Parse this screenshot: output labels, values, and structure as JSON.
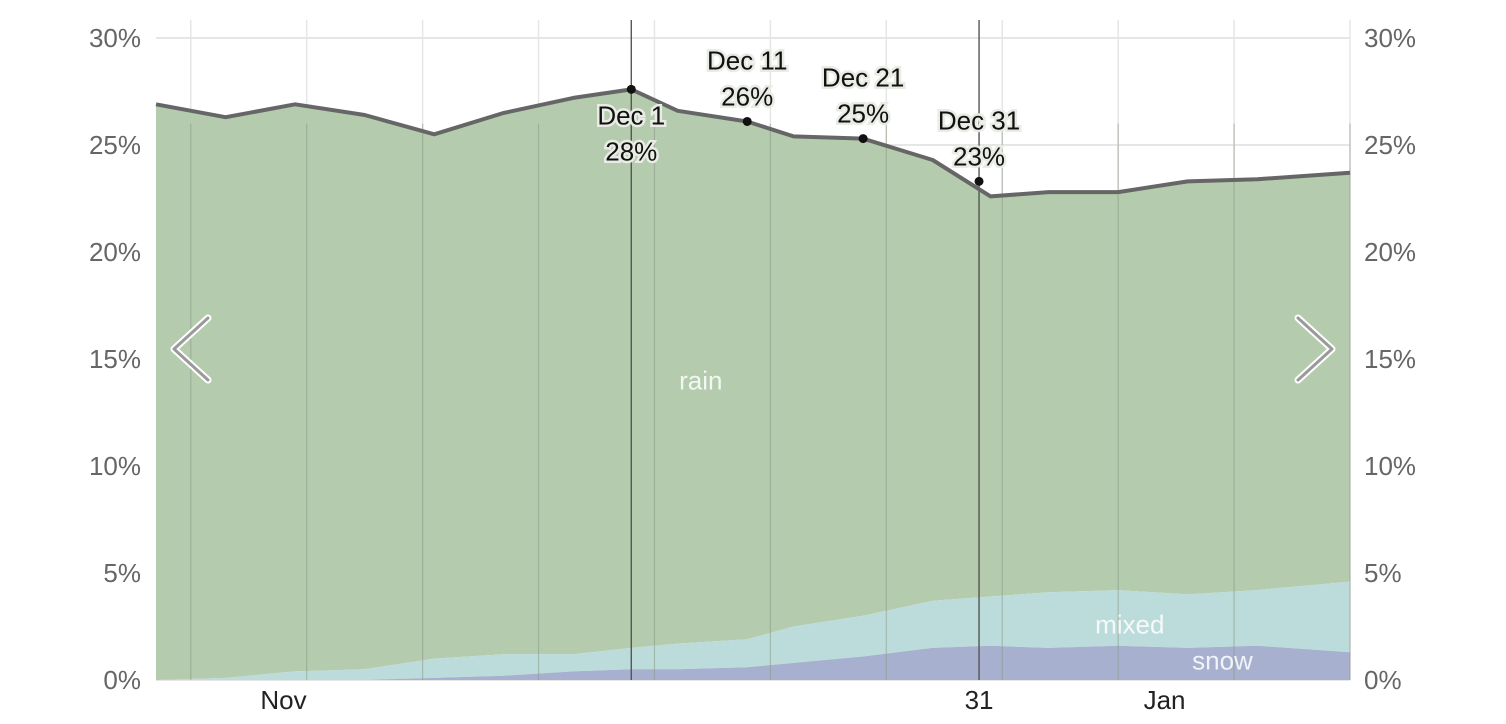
{
  "colors": {
    "rain": "#b4cbad",
    "mixed": "#bcdcdc",
    "snow": "#a7b0cf",
    "total_line": "#666666",
    "grid": "#e6e6e6",
    "week_line": "#8a9a86"
  },
  "navigation": {
    "prev_icon": "chevron-left-icon",
    "next_icon": "chevron-right-icon"
  },
  "chart_data": {
    "type": "area",
    "stacked": true,
    "title": "",
    "xlabel": "",
    "ylabel": "",
    "ylim": [
      0,
      30
    ],
    "yticks": [
      "0%",
      "5%",
      "10%",
      "15%",
      "20%",
      "25%",
      "30%"
    ],
    "y_axes": [
      "left",
      "right"
    ],
    "grid": true,
    "x_range": [
      "Oct 21",
      "Feb 1"
    ],
    "month_labels": [
      {
        "date": "Nov 1",
        "label": "Nov"
      },
      {
        "date": "Dec 31",
        "label": "31"
      },
      {
        "date": "Jan 16",
        "label": "Jan"
      }
    ],
    "area_labels": [
      {
        "series": "rain",
        "label": "rain",
        "date": "Dec 7",
        "y": 14.0
      },
      {
        "series": "mixed",
        "label": "mixed",
        "date": "Jan 13",
        "y": 2.6
      },
      {
        "series": "snow",
        "label": "snow",
        "date": "Jan 21",
        "y": 0.9
      }
    ],
    "annotations": [
      {
        "date": "Dec 1",
        "label": "Dec 1",
        "value_label": "28%",
        "value": 27.6,
        "placement": "below"
      },
      {
        "date": "Dec 11",
        "label": "Dec 11",
        "value_label": "26%",
        "value": 26.1,
        "placement": "above"
      },
      {
        "date": "Dec 21",
        "label": "Dec 21",
        "value_label": "25%",
        "value": 25.3,
        "placement": "above"
      },
      {
        "date": "Dec 31",
        "label": "Dec 31",
        "value_label": "23%",
        "value": 23.3,
        "placement": "above"
      }
    ],
    "x": [
      "Oct 21",
      "Oct 27",
      "Nov 2",
      "Nov 8",
      "Nov 14",
      "Nov 20",
      "Nov 26",
      "Dec 1",
      "Dec 5",
      "Dec 11",
      "Dec 15",
      "Dec 21",
      "Dec 27",
      "Jan 1",
      "Jan 6",
      "Jan 12",
      "Jan 18",
      "Jan 24",
      "Feb 1"
    ],
    "series": [
      {
        "name": "snow",
        "values": [
          0.0,
          0.0,
          0.0,
          0.0,
          0.1,
          0.2,
          0.4,
          0.5,
          0.5,
          0.6,
          0.8,
          1.1,
          1.5,
          1.6,
          1.5,
          1.6,
          1.5,
          1.6,
          1.3
        ]
      },
      {
        "name": "mixed",
        "values": [
          0.0,
          0.1,
          0.4,
          0.5,
          0.9,
          1.0,
          0.8,
          1.0,
          1.2,
          1.3,
          1.7,
          1.9,
          2.2,
          2.3,
          2.6,
          2.6,
          2.5,
          2.6,
          3.3
        ]
      },
      {
        "name": "rain",
        "values": [
          26.9,
          26.2,
          26.5,
          25.9,
          24.5,
          25.3,
          26.0,
          26.1,
          24.9,
          24.2,
          22.9,
          22.3,
          20.6,
          18.7,
          18.7,
          18.6,
          19.3,
          19.2,
          19.1
        ]
      },
      {
        "name": "total",
        "values": [
          26.9,
          26.3,
          26.9,
          26.4,
          25.5,
          26.5,
          27.2,
          27.6,
          26.6,
          26.1,
          25.4,
          25.3,
          24.3,
          22.6,
          22.8,
          22.8,
          23.3,
          23.4,
          23.7
        ]
      }
    ]
  }
}
